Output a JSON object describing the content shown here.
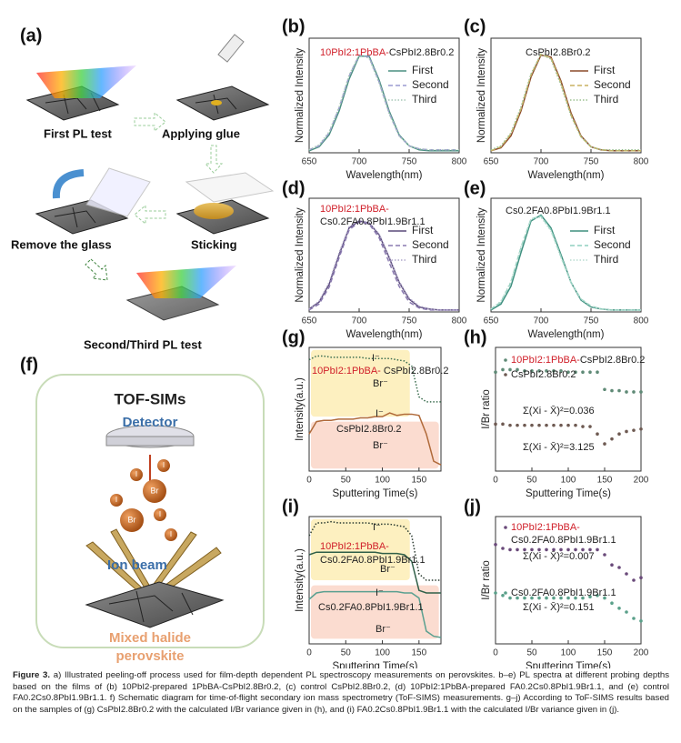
{
  "chart_data": [
    {
      "panel": "(b)",
      "type": "line",
      "xlabel": "Wavelength(nm)",
      "ylabel": "Normalized Intensity",
      "x": [
        650,
        660,
        670,
        680,
        690,
        700,
        710,
        720,
        730,
        740,
        750,
        760,
        770,
        780,
        790,
        800
      ],
      "xlim": [
        650,
        800
      ],
      "xticks": [
        650,
        700,
        750,
        800
      ],
      "ylim": [
        0,
        1.15
      ],
      "legend": "upper right",
      "annotations": [
        {
          "parts": [
            "10PbI2:1PbBA-",
            "CsPbI2.8Br0.2"
          ],
          "colors": [
            "#d0202a",
            "#222"
          ]
        }
      ],
      "series": [
        {
          "name": "First",
          "color": "#4a8f80",
          "style": "solid",
          "values": [
            0.02,
            0.06,
            0.18,
            0.42,
            0.74,
            0.97,
            0.97,
            0.73,
            0.42,
            0.18,
            0.07,
            0.03,
            0.02,
            0.02,
            0.02,
            0.02
          ]
        },
        {
          "name": "Second",
          "color": "#9a9ad0",
          "style": "dashed",
          "values": [
            0.03,
            0.07,
            0.2,
            0.45,
            0.77,
            0.98,
            0.96,
            0.71,
            0.4,
            0.17,
            0.07,
            0.04,
            0.03,
            0.03,
            0.03,
            0.03
          ]
        },
        {
          "name": "Third",
          "color": "#a8c8b8",
          "style": "dotted",
          "values": [
            0.03,
            0.08,
            0.21,
            0.46,
            0.78,
            0.98,
            0.95,
            0.7,
            0.39,
            0.17,
            0.07,
            0.04,
            0.03,
            0.03,
            0.03,
            0.03
          ]
        }
      ]
    },
    {
      "panel": "(c)",
      "type": "line",
      "xlabel": "Wavelength(nm)",
      "ylabel": "Normalized Intensity",
      "x": [
        650,
        660,
        670,
        680,
        690,
        700,
        710,
        720,
        730,
        740,
        750,
        760,
        770,
        780,
        790,
        800
      ],
      "xlim": [
        650,
        800
      ],
      "xticks": [
        650,
        700,
        750,
        800
      ],
      "ylim": [
        0,
        1.15
      ],
      "legend": "upper right",
      "annotations": [
        {
          "parts": [
            "CsPbI2.8Br0.2"
          ],
          "colors": [
            "#222"
          ]
        }
      ],
      "series": [
        {
          "name": "First",
          "color": "#8b4a2a",
          "style": "solid",
          "values": [
            0.02,
            0.05,
            0.17,
            0.42,
            0.76,
            0.98,
            0.96,
            0.72,
            0.4,
            0.17,
            0.06,
            0.03,
            0.02,
            0.02,
            0.02,
            0.02
          ]
        },
        {
          "name": "Second",
          "color": "#c8b060",
          "style": "dashed",
          "values": [
            0.02,
            0.06,
            0.19,
            0.44,
            0.78,
            0.99,
            0.95,
            0.7,
            0.38,
            0.16,
            0.06,
            0.03,
            0.02,
            0.02,
            0.02,
            0.02
          ]
        },
        {
          "name": "Third",
          "color": "#9cc090",
          "style": "dotted",
          "values": [
            0.03,
            0.07,
            0.2,
            0.46,
            0.79,
            0.99,
            0.94,
            0.68,
            0.37,
            0.16,
            0.06,
            0.03,
            0.03,
            0.03,
            0.03,
            0.03
          ]
        }
      ]
    },
    {
      "panel": "(d)",
      "type": "line",
      "xlabel": "Wavelength(nm)",
      "ylabel": "Normalized Intensity",
      "x": [
        650,
        660,
        670,
        680,
        690,
        700,
        710,
        720,
        730,
        740,
        750,
        760,
        770,
        780,
        790,
        800
      ],
      "xlim": [
        650,
        800
      ],
      "xticks": [
        650,
        700,
        750,
        800
      ],
      "ylim": [
        0,
        1.15
      ],
      "legend": "upper right",
      "annotations": [
        {
          "parts": [
            "10PbI2:1PbBA-",
            "Cs0.2FA0.8PbI1.9Br1.1"
          ],
          "colors": [
            "#d0202a",
            "#222"
          ]
        }
      ],
      "series": [
        {
          "name": "First",
          "color": "#5a4a7a",
          "style": "solid",
          "values": [
            0.03,
            0.1,
            0.28,
            0.58,
            0.85,
            0.92,
            0.9,
            0.78,
            0.55,
            0.3,
            0.13,
            0.05,
            0.03,
            0.02,
            0.02,
            0.02
          ]
        },
        {
          "name": "Second",
          "color": "#8a7ab0",
          "style": "dashed",
          "values": [
            0.02,
            0.08,
            0.25,
            0.55,
            0.83,
            0.91,
            0.89,
            0.75,
            0.5,
            0.26,
            0.1,
            0.04,
            0.02,
            0.02,
            0.02,
            0.02
          ]
        },
        {
          "name": "Third",
          "color": "#b0a8cc",
          "style": "dotted",
          "values": [
            0.03,
            0.11,
            0.3,
            0.6,
            0.86,
            0.93,
            0.9,
            0.79,
            0.56,
            0.31,
            0.14,
            0.06,
            0.03,
            0.02,
            0.02,
            0.02
          ]
        }
      ]
    },
    {
      "panel": "(e)",
      "type": "line",
      "xlabel": "Wavelength(nm)",
      "ylabel": "Normalized Intensity",
      "x": [
        650,
        660,
        670,
        680,
        690,
        700,
        710,
        720,
        730,
        740,
        750,
        760,
        770,
        780,
        790,
        800
      ],
      "xlim": [
        650,
        800
      ],
      "xticks": [
        650,
        700,
        750,
        800
      ],
      "ylim": [
        0,
        1.15
      ],
      "legend": "upper right",
      "annotations": [
        {
          "parts": [
            "Cs0.2FA0.8PbI1.9Br1.1"
          ],
          "colors": [
            "#222"
          ]
        }
      ],
      "series": [
        {
          "name": "First",
          "color": "#3f8f7f",
          "style": "solid",
          "values": [
            0.02,
            0.08,
            0.26,
            0.6,
            0.92,
            0.98,
            0.85,
            0.58,
            0.3,
            0.12,
            0.05,
            0.03,
            0.02,
            0.02,
            0.02,
            0.02
          ]
        },
        {
          "name": "Second",
          "color": "#8fcfbf",
          "style": "dashed",
          "values": [
            0.03,
            0.1,
            0.3,
            0.65,
            0.94,
            0.97,
            0.83,
            0.56,
            0.3,
            0.13,
            0.06,
            0.03,
            0.02,
            0.02,
            0.02,
            0.02
          ]
        },
        {
          "name": "Third",
          "color": "#b8dcd0",
          "style": "dotted",
          "values": [
            0.03,
            0.11,
            0.31,
            0.66,
            0.94,
            0.96,
            0.82,
            0.55,
            0.3,
            0.13,
            0.06,
            0.03,
            0.02,
            0.02,
            0.02,
            0.02
          ]
        }
      ]
    },
    {
      "panel": "(g)",
      "type": "line",
      "xlabel": "Sputtering Time(s)",
      "ylabel": "Intensity(a.u.)",
      "x": [
        0,
        10,
        20,
        30,
        40,
        50,
        60,
        70,
        80,
        90,
        100,
        110,
        120,
        130,
        140,
        150,
        160,
        170,
        180
      ],
      "xlim": [
        0,
        180
      ],
      "xticks": [
        0,
        50,
        100,
        150
      ],
      "ylim": [
        0,
        1
      ],
      "annotations": [
        {
          "parts": [
            "I⁻"
          ],
          "colors": [
            "#222"
          ]
        },
        {
          "parts": [
            "10PbI2:1PbBA-",
            " CsPbI2.8Br0.2"
          ],
          "colors": [
            "#d0202a",
            "#222"
          ]
        },
        {
          "parts": [
            "Br⁻"
          ],
          "colors": [
            "#222"
          ]
        },
        {
          "parts": [
            "I⁻"
          ],
          "colors": [
            "#222"
          ]
        },
        {
          "parts": [
            "CsPbI2.8Br0.2"
          ],
          "colors": [
            "#222"
          ]
        },
        {
          "parts": [
            "Br⁻"
          ],
          "colors": [
            "#222"
          ]
        }
      ],
      "series": [
        {
          "color": "#3c6e50",
          "style": "dotted",
          "values": [
            0.9,
            0.93,
            0.93,
            0.92,
            0.92,
            0.92,
            0.92,
            0.92,
            0.91,
            0.91,
            0.91,
            0.91,
            0.9,
            0.89,
            0.85,
            0.6,
            0.56,
            0.56,
            0.56
          ]
        },
        {
          "color": "#b06a3a",
          "style": "solid",
          "values": [
            0.3,
            0.4,
            0.41,
            0.41,
            0.42,
            0.42,
            0.42,
            0.43,
            0.43,
            0.44,
            0.44,
            0.47,
            0.45,
            0.46,
            0.46,
            0.45,
            0.3,
            0.08,
            0.05
          ]
        }
      ]
    },
    {
      "panel": "(h)",
      "type": "scatter",
      "xlabel": "Sputtering Time(s)",
      "ylabel": "I/Br ratio",
      "x": [
        0,
        10,
        20,
        30,
        40,
        50,
        60,
        70,
        80,
        90,
        100,
        110,
        120,
        130,
        140,
        150,
        160,
        170,
        180,
        190,
        200
      ],
      "xlim": [
        0,
        200
      ],
      "xticks": [
        0,
        50,
        100,
        150,
        200
      ],
      "ylim": [
        0,
        1
      ],
      "annotations": [
        {
          "parts": [
            "Σ(Xi - X̄)²=0.036"
          ],
          "colors": [
            "#222"
          ]
        },
        {
          "parts": [
            "Σ(Xi - X̄)²=3.125"
          ],
          "colors": [
            "#222"
          ]
        }
      ],
      "series": [
        {
          "label": {
            "parts": [
              "10PbI2:1PbBA-",
              "CsPbI2.8Br0.2"
            ],
            "colors": [
              "#d0202a",
              "#222"
            ]
          },
          "color": "#5f8a76",
          "values": [
            0.8,
            0.82,
            0.82,
            0.82,
            0.81,
            0.81,
            0.81,
            0.81,
            0.81,
            0.81,
            0.8,
            0.8,
            0.8,
            0.8,
            0.8,
            0.66,
            0.65,
            0.65,
            0.64,
            0.64,
            0.64
          ]
        },
        {
          "label": {
            "parts": [
              "CsPbI2.8Br0.2"
            ],
            "colors": [
              "#222"
            ]
          },
          "color": "#6e5a52",
          "values": [
            0.38,
            0.38,
            0.37,
            0.37,
            0.37,
            0.37,
            0.37,
            0.37,
            0.37,
            0.37,
            0.37,
            0.37,
            0.36,
            0.36,
            0.3,
            0.22,
            0.26,
            0.3,
            0.32,
            0.33,
            0.34
          ]
        }
      ]
    },
    {
      "panel": "(i)",
      "type": "line",
      "xlabel": "Sputtering Time(s)",
      "ylabel": "Intensity(a.u.)",
      "x": [
        0,
        10,
        20,
        30,
        40,
        50,
        60,
        70,
        80,
        90,
        100,
        110,
        120,
        130,
        140,
        150,
        160,
        170,
        180
      ],
      "xlim": [
        0,
        180
      ],
      "xticks": [
        0,
        50,
        100,
        150
      ],
      "ylim": [
        0,
        1
      ],
      "annotations": [
        {
          "parts": [
            "I⁻"
          ],
          "colors": [
            "#222"
          ]
        },
        {
          "parts": [
            "10PbI2:1PbBA-"
          ],
          "colors": [
            "#d0202a"
          ]
        },
        {
          "parts": [
            "Cs0.2FA0.8PbI1.9Br1.1"
          ],
          "colors": [
            "#222"
          ]
        },
        {
          "parts": [
            "Br⁻"
          ],
          "colors": [
            "#222"
          ]
        },
        {
          "parts": [
            "I⁻"
          ],
          "colors": [
            "#222"
          ]
        },
        {
          "parts": [
            "Cs0.2FA0.8PbI1.9Br1.1"
          ],
          "colors": [
            "#222"
          ]
        },
        {
          "parts": [
            "Br⁻"
          ],
          "colors": [
            "#222"
          ]
        }
      ],
      "series": [
        {
          "color": "#2a3a30",
          "style": "dotted",
          "values": [
            0.85,
            0.95,
            0.95,
            0.96,
            0.95,
            0.95,
            0.95,
            0.95,
            0.95,
            0.94,
            0.94,
            0.94,
            0.93,
            0.92,
            0.85,
            0.55,
            0.5,
            0.5,
            0.5
          ]
        },
        {
          "color": "#2f5f48",
          "style": "solid",
          "values": [
            0.7,
            0.72,
            0.72,
            0.72,
            0.72,
            0.72,
            0.72,
            0.72,
            0.72,
            0.72,
            0.71,
            0.71,
            0.71,
            0.7,
            0.65,
            0.42,
            0.4,
            0.4,
            0.4
          ]
        },
        {
          "color": "#5aa090",
          "style": "solid",
          "values": [
            0.35,
            0.4,
            0.41,
            0.41,
            0.41,
            0.41,
            0.41,
            0.41,
            0.41,
            0.41,
            0.41,
            0.41,
            0.41,
            0.4,
            0.4,
            0.36,
            0.1,
            0.06,
            0.05
          ]
        }
      ]
    },
    {
      "panel": "(j)",
      "type": "scatter",
      "xlabel": "Sputtering Time(s)",
      "ylabel": "I/Br ratio",
      "x": [
        0,
        10,
        20,
        30,
        40,
        50,
        60,
        70,
        80,
        90,
        100,
        110,
        120,
        130,
        140,
        150,
        160,
        170,
        180,
        190,
        200
      ],
      "xlim": [
        0,
        200
      ],
      "xticks": [
        0,
        50,
        100,
        150,
        200
      ],
      "ylim": [
        0,
        1
      ],
      "annotations": [
        {
          "parts": [
            "Σ(Xi - X̄)²=0.007"
          ],
          "colors": [
            "#222"
          ]
        },
        {
          "parts": [
            "Σ(Xi - X̄)²=0.151"
          ],
          "colors": [
            "#222"
          ]
        }
      ],
      "series": [
        {
          "label": {
            "parts": [
              "10PbI2:1PbBA-",
              "Cs0.2FA0.8PbI1.9Br1.1"
            ],
            "colors": [
              "#d0202a",
              "#222"
            ]
          },
          "color": "#6a4a7a",
          "values": [
            0.78,
            0.75,
            0.74,
            0.74,
            0.74,
            0.74,
            0.74,
            0.74,
            0.74,
            0.74,
            0.74,
            0.74,
            0.74,
            0.74,
            0.74,
            0.7,
            0.62,
            0.6,
            0.55,
            0.5,
            0.52
          ]
        },
        {
          "label": {
            "parts": [
              "Cs0.2FA0.8PbI1.9Br1.1"
            ],
            "colors": [
              "#222"
            ]
          },
          "color": "#5aa08a",
          "values": [
            0.4,
            0.38,
            0.36,
            0.36,
            0.36,
            0.36,
            0.36,
            0.36,
            0.36,
            0.36,
            0.36,
            0.36,
            0.36,
            0.37,
            0.38,
            0.36,
            0.32,
            0.28,
            0.25,
            0.2,
            0.18
          ]
        }
      ]
    }
  ],
  "schematics": {
    "a": {
      "panel": "(a)",
      "steps": [
        "First PL test",
        "Applying glue",
        "Sticking",
        "Remove the glass",
        "Second/Third PL test"
      ]
    },
    "f": {
      "panel": "(f)",
      "title": "TOF-SIMs",
      "detector": "Detector",
      "ion_beam": "Ion beam",
      "sample": [
        "Mixed halide",
        "perovskite"
      ],
      "ions": [
        "I",
        "Br"
      ]
    }
  },
  "caption": {
    "label": "Figure 3.",
    "text": "a) Illustrated peeling-off process used for film-depth dependent PL spectroscopy measurements on perovskites. b–e) PL spectra at different probing depths based on the films of (b) 10PbI2-prepared 1PbBA-CsPbI2.8Br0.2, (c) control CsPbI2.8Br0.2, (d) 10PbI2:1PbBA-prepared FA0.2Cs0.8PbI1.9Br1.1, and (e) control FA0.2Cs0.8PbI1.9Br1.1. f) Schematic diagram for time-of-flight secondary ion mass spectrometry (ToF-SIMS) measurements. g–j) According to ToF-SIMS results based on the samples of (g) CsPbI2.8Br0.2 with the calculated I/Br variance given in (h), and (i) FA0.2Cs0.8PbI1.9Br1.1 with the calculated I/Br variance given in (j)."
  }
}
